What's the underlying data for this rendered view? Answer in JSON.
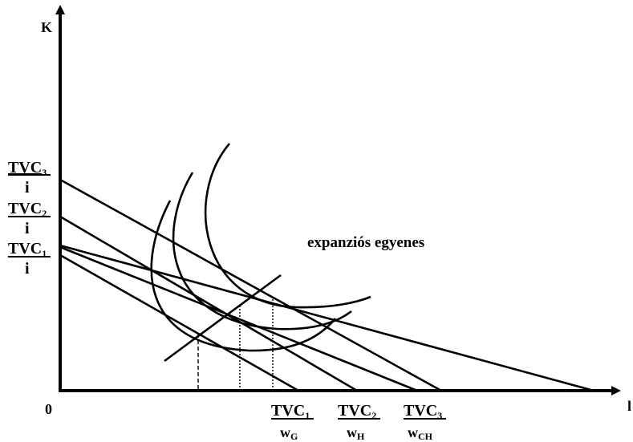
{
  "axes": {
    "y_label": "K",
    "x_label": "l",
    "origin_label": "0"
  },
  "y_intercepts": [
    {
      "top": "TVC",
      "sub": "3",
      "bottom": "i"
    },
    {
      "top": "TVC",
      "sub": "2",
      "bottom": "i"
    },
    {
      "top": "TVC",
      "sub": "1",
      "bottom": "i"
    }
  ],
  "x_intercepts": [
    {
      "top": "TVC",
      "top_sub": "1",
      "bottom": "w",
      "bottom_sub": "G"
    },
    {
      "top": "TVC",
      "top_sub": "2",
      "bottom": "w",
      "bottom_sub": "H"
    },
    {
      "top": "TVC",
      "top_sub": "3",
      "bottom": "w",
      "bottom_sub": "CH"
    }
  ],
  "expansion_label": "expanziós egyenes",
  "colors": {
    "ink": "#000000",
    "background": "#ffffff"
  }
}
